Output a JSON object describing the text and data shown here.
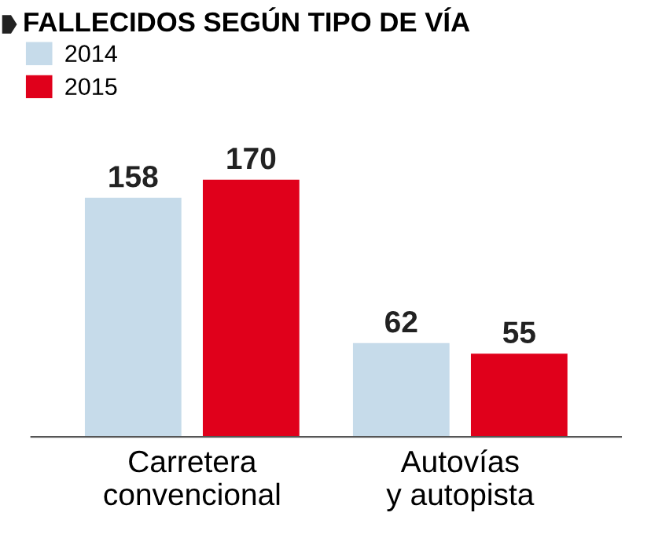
{
  "chart_data": {
    "type": "bar",
    "title": "FALLECIDOS SEGÚN TIPO DE VÍA",
    "categories": [
      "Carretera\nconvencional",
      "Autovías\ny autopista"
    ],
    "series": [
      {
        "name": "2014",
        "color": "#c6dbea",
        "values": [
          158,
          62
        ]
      },
      {
        "name": "2015",
        "color": "#e0001b",
        "values": [
          170,
          55
        ]
      }
    ],
    "data_labels": true,
    "legend": "top left",
    "grid": false
  }
}
